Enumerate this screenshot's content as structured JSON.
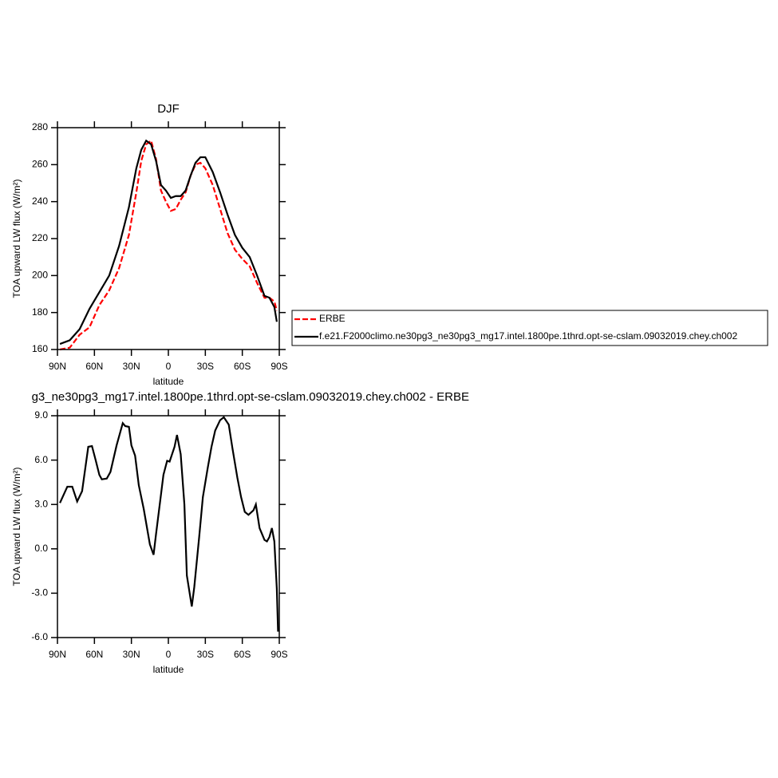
{
  "chart_data": [
    {
      "type": "line",
      "title": "DJF",
      "xlabel": "latitude",
      "ylabel": "TOA upward LW flux (W/m²)",
      "x": [
        88,
        80,
        72,
        64,
        56,
        48,
        40,
        32,
        26,
        22,
        18,
        14,
        10,
        6,
        2,
        -2,
        -6,
        -10,
        -14,
        -18,
        -22,
        -26,
        -30,
        -36,
        -42,
        -48,
        -54,
        -60,
        -66,
        -72,
        -78,
        -82,
        -86,
        -88
      ],
      "series": [
        {
          "name": "ERBE",
          "color": "#ff0000",
          "style": "dashed",
          "values": [
            160,
            161,
            168,
            172,
            184,
            192,
            204,
            222,
            245,
            262,
            271,
            273,
            263,
            246,
            240,
            235,
            236,
            241,
            245,
            254,
            260,
            261,
            258,
            249,
            236,
            223,
            214,
            209,
            205,
            196,
            188,
            188,
            186,
            181
          ]
        },
        {
          "name": "f.e21.F2000climo.ne30pg3_ne30pg3_mg17.intel.1800pe.1thrd.opt-se-cslam.09032019.chey.ch002",
          "color": "#000000",
          "style": "solid",
          "values": [
            163,
            165,
            171,
            182,
            191,
            200,
            216,
            237,
            258,
            268,
            273,
            271,
            262,
            249,
            246,
            242,
            243,
            243,
            246,
            254,
            261,
            264,
            264,
            256,
            245,
            233,
            222,
            215,
            210,
            200,
            189,
            188,
            183,
            175
          ]
        }
      ],
      "xlim": [
        90,
        -90
      ],
      "xticks": [
        {
          "value": 90,
          "label": "90N"
        },
        {
          "value": 60,
          "label": "60N"
        },
        {
          "value": 30,
          "label": "30N"
        },
        0,
        {
          "value": -30,
          "label": "30S"
        },
        {
          "value": -60,
          "label": "60S"
        },
        {
          "value": -90,
          "label": "90S"
        }
      ],
      "ylim": [
        160,
        280
      ],
      "yticks": [
        160,
        180,
        200,
        220,
        240,
        260,
        280
      ],
      "legend": "right"
    },
    {
      "type": "line",
      "title": "g3_ne30pg3_mg17.intel.1800pe.1thrd.opt-se-cslam.09032019.chey.ch002 - ERBE",
      "xlabel": "latitude",
      "ylabel": "TOA upward LW flux (W/m²)",
      "x": [
        88,
        82,
        78,
        74,
        70,
        65,
        62,
        59,
        56,
        54,
        50,
        47,
        42,
        37,
        35,
        32,
        30,
        27,
        24,
        20,
        15,
        12,
        10,
        7,
        4,
        1,
        -1,
        -5,
        -7,
        -10,
        -13,
        -15,
        -19,
        -21,
        -25,
        -28,
        -32,
        -35,
        -38,
        -42,
        -45,
        -49,
        -52,
        -56,
        -59,
        -62,
        -65,
        -69,
        -71,
        -74,
        -78,
        -80,
        -82,
        -84,
        -86,
        -88,
        -89
      ],
      "series": [
        {
          "color": "#000000",
          "style": "solid",
          "values": [
            3.1,
            4.2,
            4.2,
            3.2,
            3.9,
            6.9,
            6.95,
            6.0,
            5.0,
            4.7,
            4.75,
            5.2,
            7.0,
            8.5,
            8.3,
            8.25,
            7.0,
            6.3,
            4.3,
            2.7,
            0.3,
            -0.4,
            1.0,
            3.0,
            5.0,
            5.95,
            5.9,
            6.9,
            7.7,
            6.4,
            3.0,
            -1.8,
            -3.9,
            -2.6,
            0.8,
            3.5,
            5.5,
            6.9,
            8.0,
            8.7,
            8.9,
            8.4,
            6.8,
            4.8,
            3.5,
            2.5,
            2.3,
            2.6,
            3.0,
            1.4,
            0.6,
            0.5,
            0.8,
            1.4,
            0.5,
            -2.7,
            -5.6
          ]
        }
      ],
      "xlim": [
        90,
        -90
      ],
      "xticks": [
        {
          "value": 90,
          "label": "90N"
        },
        {
          "value": 60,
          "label": "60N"
        },
        {
          "value": 30,
          "label": "30N"
        },
        0,
        {
          "value": -30,
          "label": "30S"
        },
        {
          "value": -60,
          "label": "60S"
        },
        {
          "value": -90,
          "label": "90S"
        }
      ],
      "ylim": [
        -6,
        9
      ],
      "yticks": [
        {
          "value": -6,
          "label": "-6.0"
        },
        {
          "value": -3,
          "label": "-3.0"
        },
        {
          "value": 0,
          "label": "0.0"
        },
        {
          "value": 3,
          "label": "3.0"
        },
        {
          "value": 6,
          "label": "6.0"
        },
        {
          "value": 9,
          "label": "9.0"
        }
      ]
    }
  ]
}
